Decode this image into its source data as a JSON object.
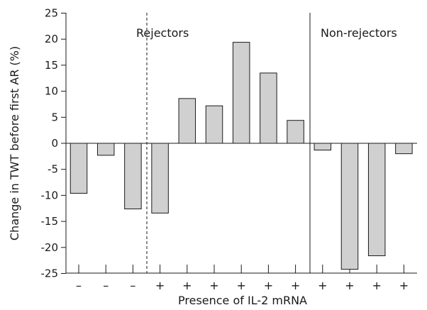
{
  "chart_data": {
    "type": "bar",
    "xlabel": "Presence of IL-2 mRNA",
    "ylabel": "Change in TWT before first AR (%)",
    "ylim": [
      -25,
      25
    ],
    "yticks": [
      25,
      20,
      15,
      10,
      5,
      0,
      -5,
      -10,
      -15,
      -20,
      -25
    ],
    "categories": [
      "–",
      "–",
      "–",
      "+",
      "+",
      "+",
      "+",
      "+",
      "+",
      "+",
      "+",
      "+",
      "+"
    ],
    "values": [
      -9.6,
      -2.3,
      -12.6,
      -13.4,
      8.6,
      7.2,
      19.4,
      13.5,
      4.4,
      -1.3,
      -24.2,
      -21.6,
      -2.0
    ],
    "groups": [
      {
        "label": "Rejectors",
        "divider": "dashed"
      },
      {
        "label": "Non-rejectors",
        "divider": "solid"
      }
    ],
    "bar_color": "#d0d0d0",
    "grid": false
  }
}
